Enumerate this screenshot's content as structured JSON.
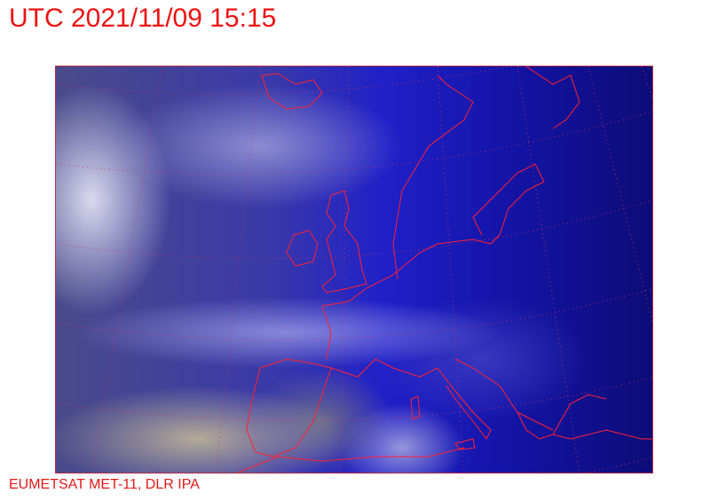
{
  "header": {
    "title": "UTC 2021/11/09 15:15"
  },
  "footer": {
    "credit": "EUMETSAT MET-11, DLR IPA"
  },
  "map": {
    "type": "satellite-image",
    "overlay_color": "#ff2020",
    "grid": "dotted lat/lon graticule",
    "coastlines": true
  }
}
